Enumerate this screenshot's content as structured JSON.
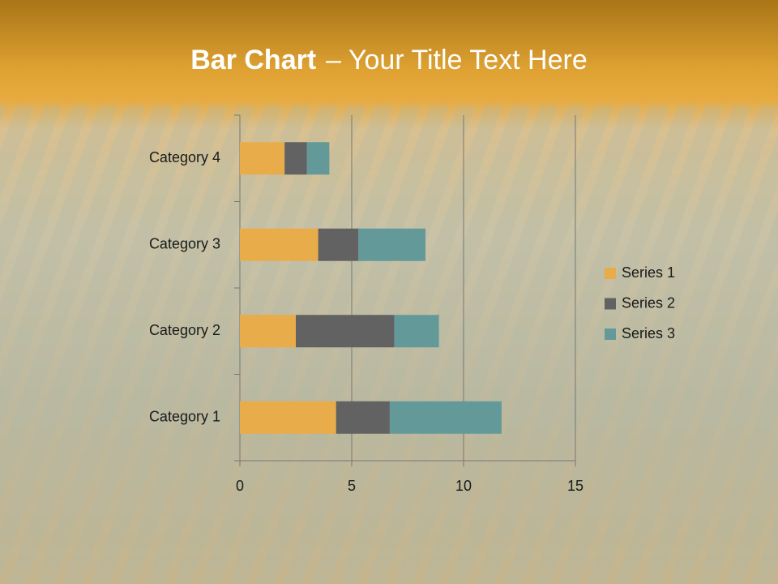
{
  "chart_data": {
    "type": "stacked-bar-horizontal",
    "title_bold": "Bar Chart",
    "title": "– Your Title Text Here",
    "categories": [
      "Category 1",
      "Category 2",
      "Category 3",
      "Category 4"
    ],
    "series": [
      {
        "name": "Series 1",
        "color": "#e8ad4a",
        "values": [
          4.3,
          2.5,
          3.5,
          2
        ]
      },
      {
        "name": "Series 2",
        "color": "#626262",
        "values": [
          2.4,
          4.4,
          1.8,
          1
        ]
      },
      {
        "name": "Series 3",
        "color": "#64999a",
        "values": [
          5,
          2,
          3,
          1
        ]
      }
    ],
    "xlim": [
      0,
      15
    ],
    "xticks": [
      0,
      5,
      10,
      15
    ],
    "grid": true,
    "legend": "right"
  }
}
